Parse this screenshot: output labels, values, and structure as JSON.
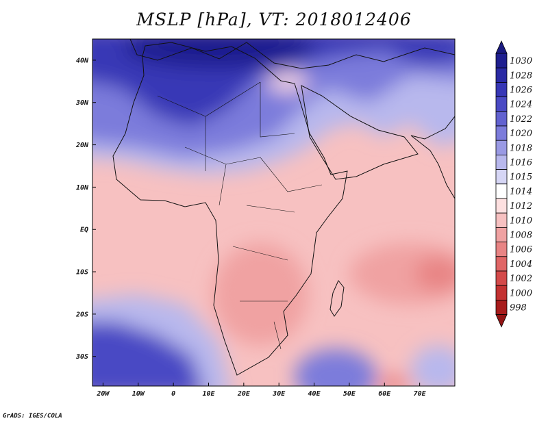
{
  "title": "MSLP [hPa], VT: 2018012406",
  "credit": "GrADS: IGES/COLA",
  "map": {
    "lon_range": [
      -23,
      80
    ],
    "lat_range": [
      -37,
      45
    ],
    "lat_ticks": [
      {
        "value": 40,
        "label": "40N"
      },
      {
        "value": 30,
        "label": "30N"
      },
      {
        "value": 20,
        "label": "20N"
      },
      {
        "value": 10,
        "label": "10N"
      },
      {
        "value": 0,
        "label": "EQ"
      },
      {
        "value": -10,
        "label": "10S"
      },
      {
        "value": -20,
        "label": "20S"
      },
      {
        "value": -30,
        "label": "30S"
      }
    ],
    "lon_ticks": [
      {
        "value": -20,
        "label": "20W"
      },
      {
        "value": -10,
        "label": "10W"
      },
      {
        "value": 0,
        "label": "0"
      },
      {
        "value": 10,
        "label": "10E"
      },
      {
        "value": 20,
        "label": "20E"
      },
      {
        "value": 30,
        "label": "30E"
      },
      {
        "value": 40,
        "label": "40E"
      },
      {
        "value": 50,
        "label": "50E"
      },
      {
        "value": 60,
        "label": "60E"
      },
      {
        "value": 70,
        "label": "70E"
      }
    ]
  },
  "colorbar": {
    "levels": [
      {
        "label": "1030",
        "color": "#1f1f8f"
      },
      {
        "label": "1028",
        "color": "#2a2aa4"
      },
      {
        "label": "1026",
        "color": "#3737b6"
      },
      {
        "label": "1024",
        "color": "#4a4ac4"
      },
      {
        "label": "1022",
        "color": "#6262d0"
      },
      {
        "label": "1020",
        "color": "#7c7cdb"
      },
      {
        "label": "1018",
        "color": "#9a9ae4"
      },
      {
        "label": "1016",
        "color": "#b8b8ed"
      },
      {
        "label": "1015",
        "color": "#d6d6f5"
      },
      {
        "label": "1014",
        "color": "#ffffff"
      },
      {
        "label": "1012",
        "color": "#fde0e0"
      },
      {
        "label": "1010",
        "color": "#f7c1c1"
      },
      {
        "label": "1008",
        "color": "#f0a2a2"
      },
      {
        "label": "1006",
        "color": "#e88484"
      },
      {
        "label": "1004",
        "color": "#e06666"
      },
      {
        "label": "1002",
        "color": "#d44a4a"
      },
      {
        "label": "1000",
        "color": "#c33232"
      },
      {
        "label": "998",
        "color": "#a81c1c"
      }
    ],
    "top_color": "#1a1a80",
    "bottom_color": "#921414"
  }
}
